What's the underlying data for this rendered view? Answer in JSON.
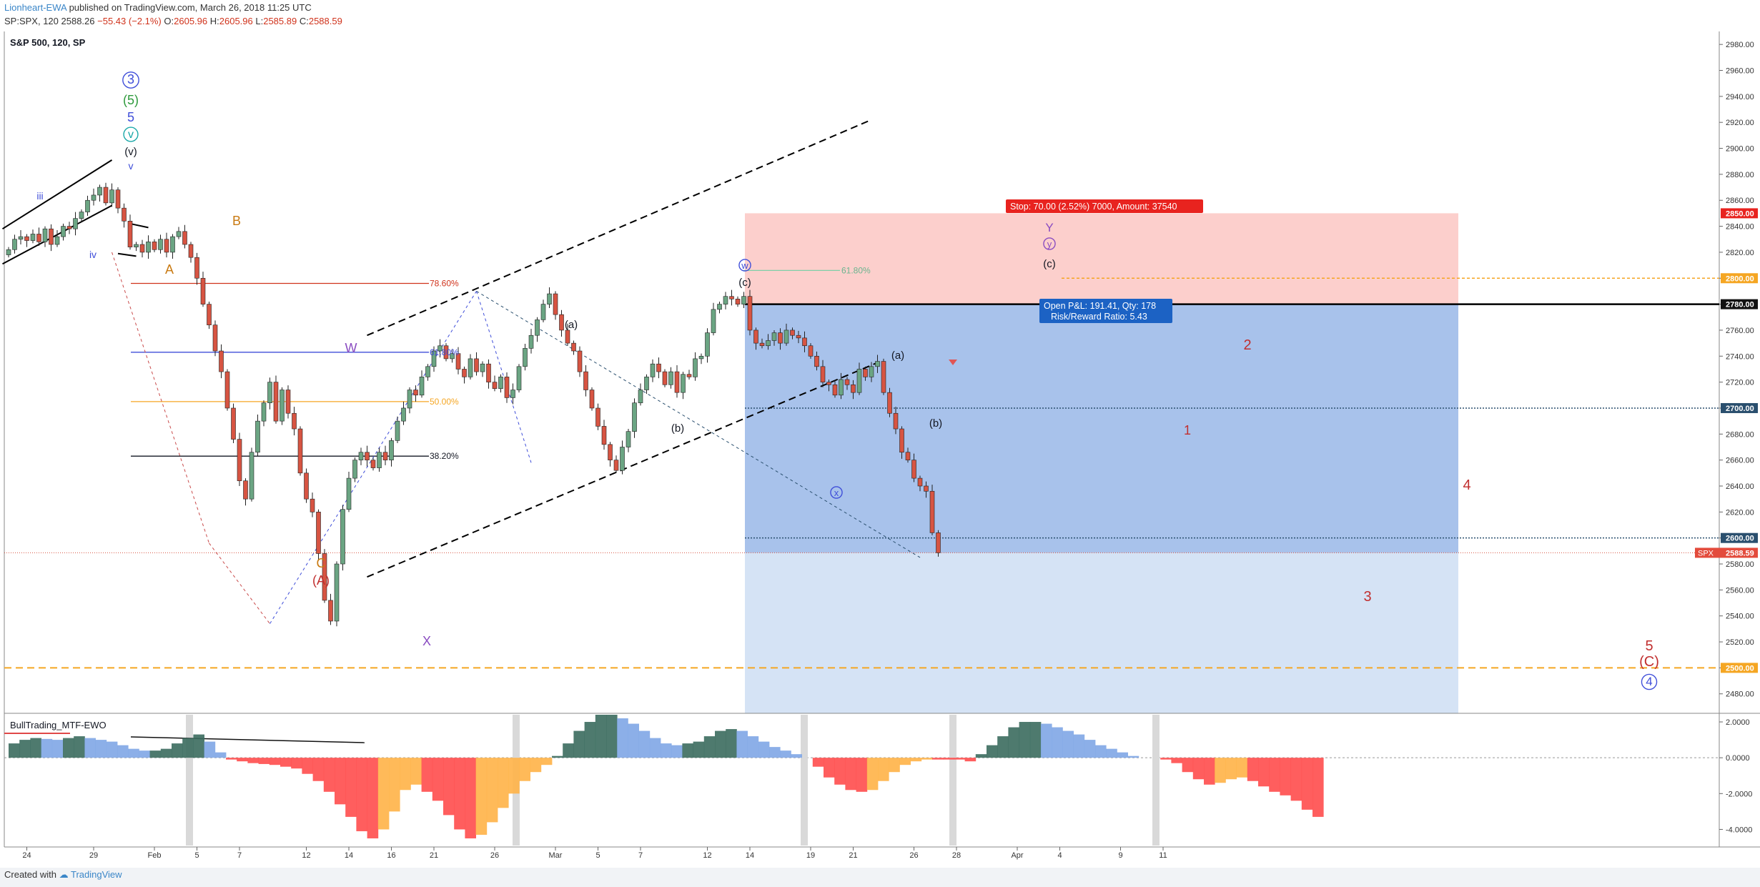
{
  "header": {
    "author": "Lionheart-EWA",
    "published": "published on TradingView.com, March 26, 2018 11:25 UTC",
    "symbol_line": "SP:SPX, 120",
    "last": "2588.26",
    "change": "−55.43 (−2.1%)",
    "ohlc": [
      {
        "label": "O:",
        "value": "2605.96"
      },
      {
        "label": "H:",
        "value": "2605.96"
      },
      {
        "label": "L:",
        "value": "2585.89"
      },
      {
        "label": "C:",
        "value": "2588.59"
      }
    ]
  },
  "pane_title": "S&P 500, 120, SP",
  "footer": {
    "created_with": "Created with",
    "brand": "TradingView"
  },
  "colors": {
    "up": "#6ba583",
    "down": "#d75442",
    "accent": "#3a86c8",
    "stop_zone": "#fbc7c3",
    "target_zone": "#9fbbe9",
    "target_zone_light": "#d3e1f4"
  },
  "chart_data": {
    "type": "candlestick",
    "symbol": "SPX",
    "ylim": [
      2465,
      2990
    ],
    "y_ticks": [
      2480,
      2500,
      2520,
      2540,
      2560,
      2580,
      2600,
      2620,
      2640,
      2660,
      2680,
      2700,
      2720,
      2740,
      2760,
      2780,
      2800,
      2820,
      2840,
      2860,
      2880,
      2900,
      2920,
      2940,
      2960,
      2980
    ],
    "x_ticks": [
      {
        "i": 3,
        "label": "24"
      },
      {
        "i": 14,
        "label": "29"
      },
      {
        "i": 24,
        "label": "Feb"
      },
      {
        "i": 31,
        "label": "5"
      },
      {
        "i": 38,
        "label": "7"
      },
      {
        "i": 49,
        "label": "12"
      },
      {
        "i": 56,
        "label": "14"
      },
      {
        "i": 63,
        "label": "16"
      },
      {
        "i": 70,
        "label": "21"
      },
      {
        "i": 80,
        "label": "26"
      },
      {
        "i": 90,
        "label": "Mar"
      },
      {
        "i": 97,
        "label": "5"
      },
      {
        "i": 104,
        "label": "7"
      },
      {
        "i": 115,
        "label": "12"
      },
      {
        "i": 122,
        "label": "14"
      },
      {
        "i": 132,
        "label": "19"
      },
      {
        "i": 139,
        "label": "21"
      },
      {
        "i": 149,
        "label": "26"
      },
      {
        "i": 156,
        "label": "28"
      },
      {
        "i": 166,
        "label": "Apr"
      },
      {
        "i": 173,
        "label": "4"
      },
      {
        "i": 183,
        "label": "9"
      },
      {
        "i": 190,
        "label": "11"
      }
    ],
    "closes": [
      2822,
      2830,
      2832,
      2829,
      2834,
      2828,
      2838,
      2826,
      2832,
      2840,
      2838,
      2846,
      2851,
      2860,
      2864,
      2870,
      2858,
      2868,
      2854,
      2844,
      2824,
      2826,
      2820,
      2828,
      2822,
      2830,
      2820,
      2832,
      2836,
      2826,
      2816,
      2800,
      2780,
      2764,
      2744,
      2728,
      2700,
      2676,
      2644,
      2630,
      2666,
      2690,
      2704,
      2720,
      2690,
      2714,
      2696,
      2684,
      2650,
      2630,
      2620,
      2588,
      2552,
      2536,
      2580,
      2622,
      2646,
      2660,
      2666,
      2660,
      2654,
      2666,
      2660,
      2675,
      2690,
      2700,
      2714,
      2710,
      2724,
      2732,
      2744,
      2748,
      2738,
      2742,
      2730,
      2724,
      2738,
      2728,
      2734,
      2720,
      2715,
      2724,
      2708,
      2714,
      2732,
      2746,
      2756,
      2768,
      2780,
      2788,
      2772,
      2760,
      2750,
      2744,
      2728,
      2714,
      2700,
      2686,
      2672,
      2660,
      2652,
      2670,
      2682,
      2704,
      2714,
      2724,
      2734,
      2728,
      2718,
      2728,
      2712,
      2726,
      2724,
      2738,
      2740,
      2758,
      2776,
      2780,
      2786,
      2784,
      2780,
      2786,
      2760,
      2750,
      2748,
      2752,
      2758,
      2750,
      2760,
      2756,
      2754,
      2748,
      2740,
      2732,
      2720,
      2718,
      2710,
      2722,
      2718,
      2712,
      2730,
      2724,
      2732,
      2736,
      2712,
      2696,
      2684,
      2666,
      2660,
      2646,
      2640,
      2636,
      2604,
      2588.59
    ],
    "current_price": "2588.59",
    "price_labels": [
      "2850.00",
      "2800.00",
      "2780.00",
      "2700.00",
      "2600.00",
      "2500.00"
    ],
    "fib_levels": [
      {
        "label": "78.60%",
        "price": 2796,
        "color": "#d0331c"
      },
      {
        "label": "61.80%",
        "price": 2743,
        "color": "#3f4ed9"
      },
      {
        "label": "50.00%",
        "price": 2705,
        "color": "#f5a623"
      },
      {
        "label": "38.20%",
        "price": 2663,
        "color": "#131722"
      }
    ],
    "fib_label_small": "61.80%",
    "position": {
      "stop_label": "Stop: 70.00 (2.52%) 7000, Amount: 37540",
      "open_pnl": "Open P&L: 191.41, Qty: 178",
      "risk_reward": "Risk/Reward Ratio: 5.43",
      "entry": 2780,
      "stop": 2850,
      "target": 2588.59,
      "target_full": 2465
    },
    "waves": {
      "deg3": "3",
      "p5": "(5)",
      "five": "5",
      "small_v": "v",
      "paren_v": "(v)",
      "v_low": "v",
      "iii": "iii",
      "iv": "iv",
      "A": "A",
      "B": "B",
      "W": "W",
      "C": "C",
      "A_paren": "(A)",
      "X": "X",
      "a1": "(a)",
      "b1": "(b)",
      "c1": "(c)",
      "w": "w",
      "x": "x",
      "a2": "(a)",
      "b2": "(b)",
      "Y": "Y",
      "y": "y",
      "c2": "(c)",
      "n1": "1",
      "n2": "2",
      "n3": "3",
      "n4": "4",
      "n5": "5",
      "C_paren": "(C)",
      "deg4": "4"
    },
    "indicator": {
      "name": "BullTrading_MTF-EWO",
      "ylim": [
        -4.9,
        2.4
      ],
      "ticks": [
        "2.0000",
        "0.0000",
        "-2.0000",
        "-4.0000"
      ]
    }
  }
}
